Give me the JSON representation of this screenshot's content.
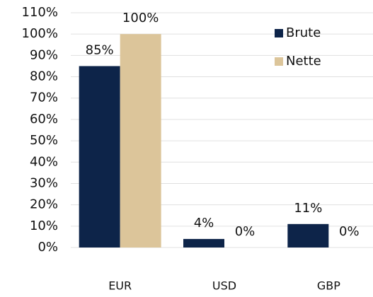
{
  "chart_data": {
    "type": "bar",
    "categories": [
      "EUR",
      "USD",
      "GBP"
    ],
    "series": [
      {
        "name": "Brute",
        "color": "#0d2449",
        "values": [
          85,
          4,
          11
        ],
        "value_labels": [
          "85%",
          "4%",
          "11%"
        ]
      },
      {
        "name": "Nette",
        "color": "#dcc59a",
        "values": [
          100,
          0,
          0
        ],
        "value_labels": [
          "100%",
          "0%",
          "0%"
        ]
      }
    ],
    "ylim": [
      0,
      110
    ],
    "yticks": [
      {
        "value": 0,
        "label": "0%"
      },
      {
        "value": 10,
        "label": "10%"
      },
      {
        "value": 20,
        "label": "20%"
      },
      {
        "value": 30,
        "label": "30%"
      },
      {
        "value": 40,
        "label": "40%"
      },
      {
        "value": 50,
        "label": "50%"
      },
      {
        "value": 60,
        "label": "60%"
      },
      {
        "value": 70,
        "label": "70%"
      },
      {
        "value": 80,
        "label": "80%"
      },
      {
        "value": 90,
        "label": "90%"
      },
      {
        "value": 100,
        "label": "100%"
      },
      {
        "value": 110,
        "label": "110%"
      }
    ],
    "grid": true,
    "legend": "upper right"
  }
}
